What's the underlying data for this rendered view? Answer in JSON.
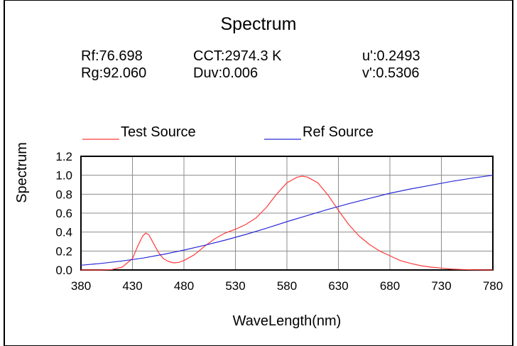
{
  "chart_data": {
    "type": "line",
    "title": "Spectrum",
    "metrics": {
      "rf": "Rf:76.698",
      "rg": "Rg:92.060",
      "cct": "CCT:2974.3 K",
      "duv": "Duv:0.006",
      "u": "u':0.2493",
      "v": "v':0.5306"
    },
    "xlabel": "WaveLength(nm)",
    "ylabel": "Spectrum",
    "xlim": [
      380,
      780
    ],
    "ylim": [
      0,
      1.2
    ],
    "x_ticks": [
      380,
      430,
      480,
      530,
      580,
      630,
      680,
      730,
      780
    ],
    "y_ticks": [
      "0.0",
      "0.2",
      "0.4",
      "0.6",
      "0.8",
      "1.0",
      "1.2"
    ],
    "grid": true,
    "legend_position": "top",
    "series": [
      {
        "name": "Test Source",
        "color": "#ff3b3b",
        "points": [
          [
            380,
            0
          ],
          [
            400,
            0
          ],
          [
            410,
            0.005
          ],
          [
            420,
            0.03
          ],
          [
            430,
            0.12
          ],
          [
            435,
            0.25
          ],
          [
            440,
            0.36
          ],
          [
            443,
            0.39
          ],
          [
            446,
            0.37
          ],
          [
            450,
            0.29
          ],
          [
            455,
            0.19
          ],
          [
            460,
            0.12
          ],
          [
            465,
            0.09
          ],
          [
            470,
            0.075
          ],
          [
            475,
            0.08
          ],
          [
            480,
            0.1
          ],
          [
            490,
            0.16
          ],
          [
            500,
            0.25
          ],
          [
            510,
            0.33
          ],
          [
            520,
            0.39
          ],
          [
            530,
            0.43
          ],
          [
            540,
            0.48
          ],
          [
            550,
            0.55
          ],
          [
            560,
            0.66
          ],
          [
            570,
            0.8
          ],
          [
            580,
            0.92
          ],
          [
            590,
            0.98
          ],
          [
            595,
            0.99
          ],
          [
            600,
            0.98
          ],
          [
            610,
            0.92
          ],
          [
            620,
            0.79
          ],
          [
            630,
            0.63
          ],
          [
            640,
            0.48
          ],
          [
            650,
            0.36
          ],
          [
            660,
            0.27
          ],
          [
            670,
            0.2
          ],
          [
            680,
            0.15
          ],
          [
            690,
            0.1
          ],
          [
            700,
            0.07
          ],
          [
            710,
            0.045
          ],
          [
            720,
            0.03
          ],
          [
            730,
            0.02
          ],
          [
            740,
            0.01
          ],
          [
            750,
            0.005
          ],
          [
            760,
            0.002
          ],
          [
            780,
            0
          ]
        ]
      },
      {
        "name": "Ref Source",
        "color": "#2b2bd8",
        "points": [
          [
            380,
            0.05
          ],
          [
            400,
            0.07
          ],
          [
            420,
            0.095
          ],
          [
            440,
            0.125
          ],
          [
            460,
            0.165
          ],
          [
            480,
            0.21
          ],
          [
            500,
            0.26
          ],
          [
            520,
            0.315
          ],
          [
            540,
            0.375
          ],
          [
            560,
            0.44
          ],
          [
            580,
            0.51
          ],
          [
            600,
            0.575
          ],
          [
            620,
            0.64
          ],
          [
            640,
            0.7
          ],
          [
            660,
            0.755
          ],
          [
            680,
            0.81
          ],
          [
            700,
            0.855
          ],
          [
            720,
            0.895
          ],
          [
            740,
            0.935
          ],
          [
            760,
            0.97
          ],
          [
            780,
            1.0
          ]
        ]
      }
    ]
  }
}
